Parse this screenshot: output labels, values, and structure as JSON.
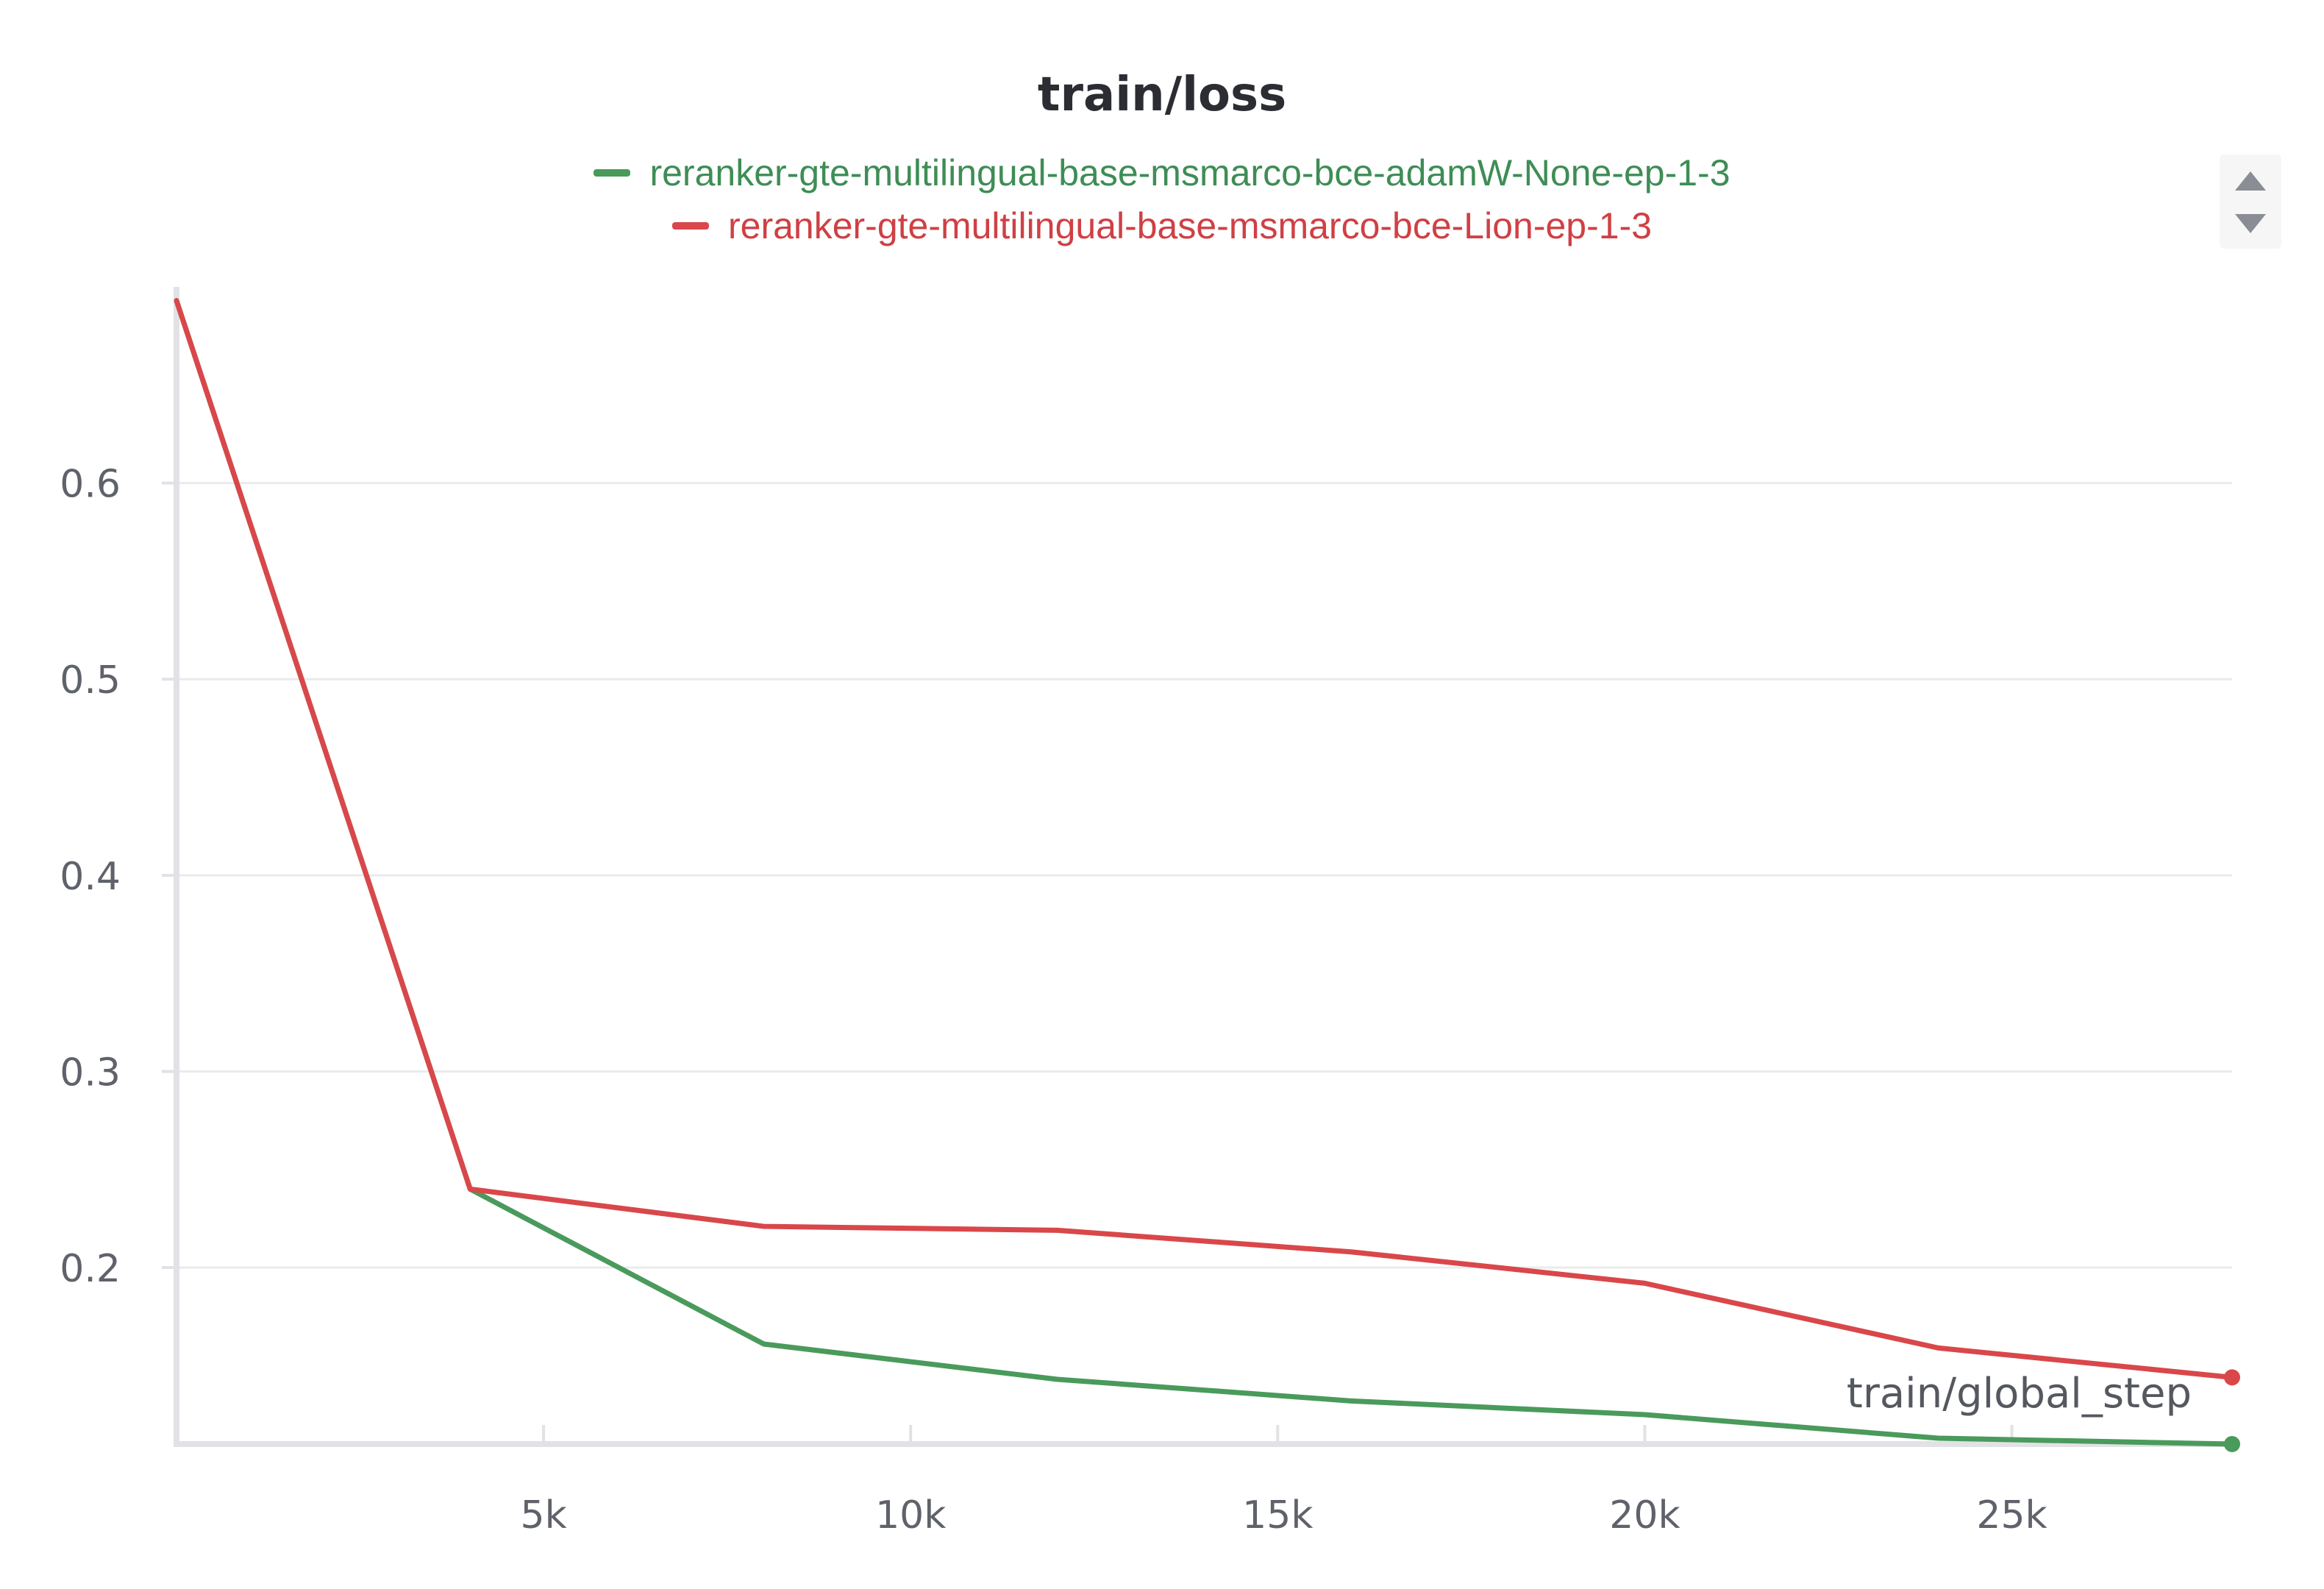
{
  "chart_data": {
    "type": "line",
    "title": "train/loss",
    "xlabel": "train/global_step",
    "ylabel": "",
    "xlim": [
      0,
      28000
    ],
    "ylim": [
      0.11,
      0.7
    ],
    "x_ticks": [
      5000,
      10000,
      15000,
      20000,
      25000
    ],
    "x_tick_labels": [
      "5k",
      "10k",
      "15k",
      "20k",
      "25k"
    ],
    "y_ticks": [
      0.2,
      0.3,
      0.4,
      0.5,
      0.6
    ],
    "y_tick_labels": [
      "0.2",
      "0.3",
      "0.4",
      "0.5",
      "0.6"
    ],
    "grid": "horizontal",
    "legend_position": "top-center",
    "series": [
      {
        "name": "reranker-gte-multilingual-base-msmarco-bce-adamW-None-ep-1-3",
        "color": "#4a9a5c",
        "x": [
          0,
          4000,
          8000,
          12000,
          16000,
          20000,
          24000,
          28000
        ],
        "y": [
          0.693,
          0.24,
          0.161,
          0.143,
          0.132,
          0.125,
          0.113,
          0.11
        ]
      },
      {
        "name": "reranker-gte-multilingual-base-msmarco-bce-Lion-ep-1-3",
        "color": "#d9474a",
        "x": [
          0,
          4000,
          8000,
          12000,
          16000,
          20000,
          24000,
          28000
        ],
        "y": [
          0.693,
          0.24,
          0.221,
          0.219,
          0.208,
          0.192,
          0.159,
          0.144
        ]
      }
    ]
  }
}
